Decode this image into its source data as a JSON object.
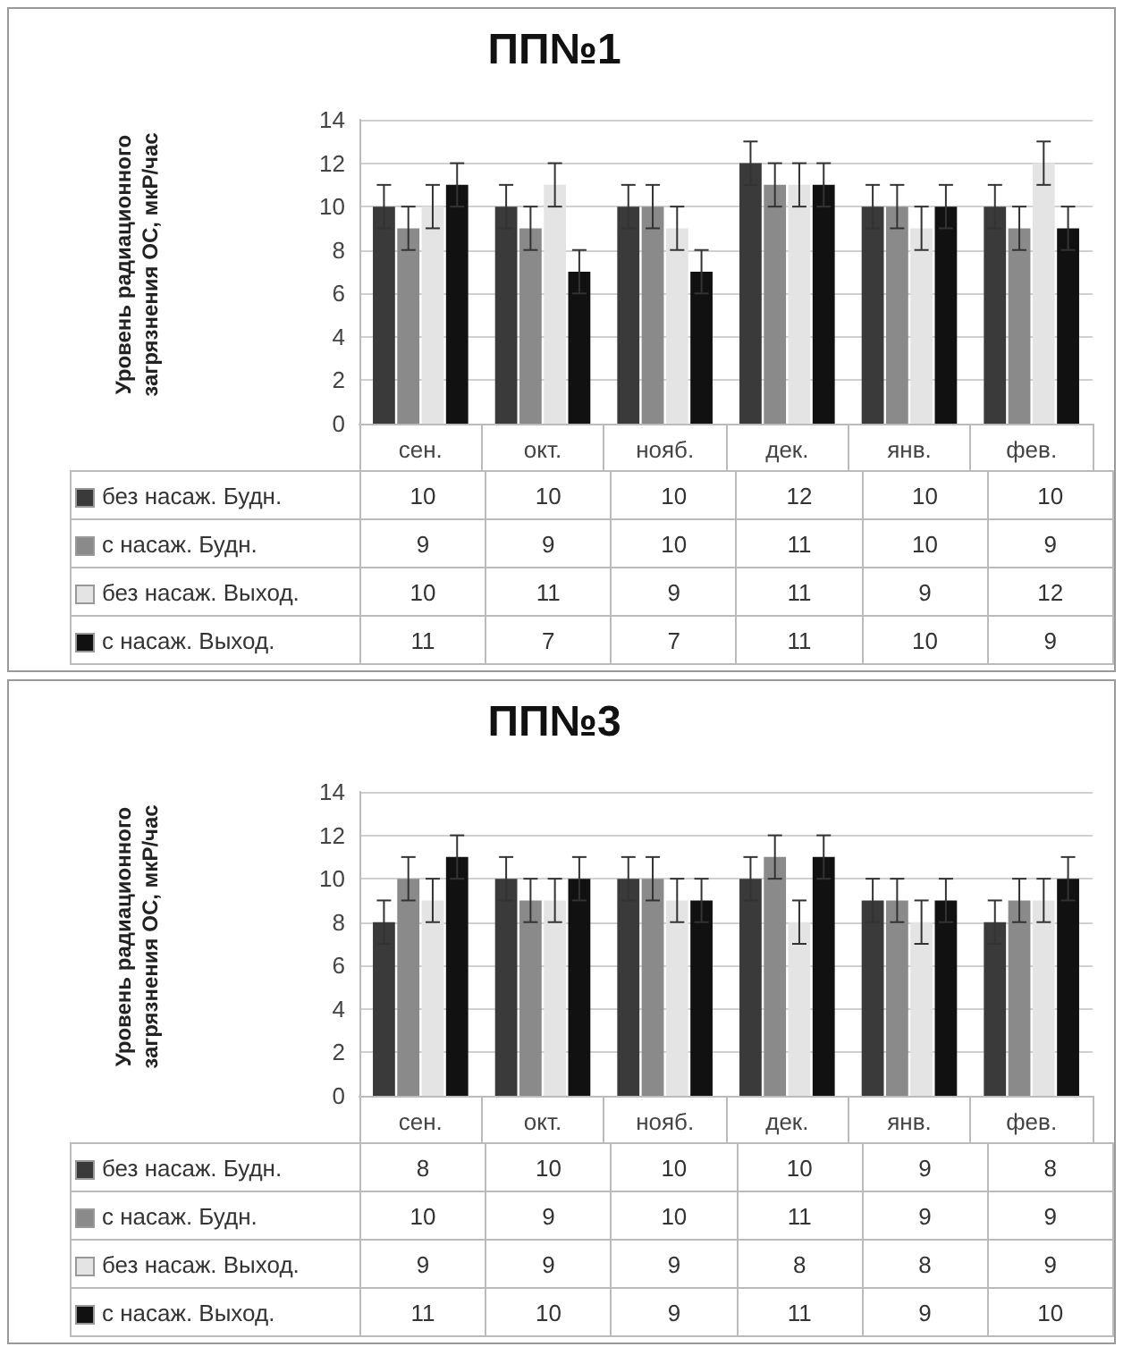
{
  "chart_data": [
    {
      "type": "bar",
      "title": "ПП№1",
      "ylabel": "Уровень радиационного загрязнения ОС, мкР/час",
      "categories": [
        "сен.",
        "окт.",
        "нояб.",
        "дек.",
        "янв.",
        "фев."
      ],
      "series": [
        {
          "name": "без насаж. Будн.",
          "color": "#3a3a3a",
          "values": [
            10,
            10,
            10,
            12,
            10,
            10
          ],
          "errors": [
            1,
            1,
            1,
            1,
            1,
            1
          ]
        },
        {
          "name": "с насаж. Будн.",
          "color": "#8a8a8a",
          "values": [
            9,
            9,
            10,
            11,
            10,
            9
          ],
          "errors": [
            1,
            1,
            1,
            1,
            1,
            1
          ]
        },
        {
          "name": "без насаж. Выход.",
          "color": "#e4e4e4",
          "values": [
            10,
            11,
            9,
            11,
            9,
            12
          ],
          "errors": [
            1,
            1,
            1,
            1,
            1,
            1
          ]
        },
        {
          "name": "с насаж. Выход.",
          "color": "#111111",
          "values": [
            11,
            7,
            7,
            11,
            10,
            9
          ],
          "errors": [
            1,
            1,
            1,
            1,
            1,
            1
          ]
        }
      ],
      "ylim": [
        0,
        14
      ],
      "yticks": [
        0,
        2,
        4,
        6,
        8,
        10,
        12,
        14
      ],
      "grid": "y",
      "legend": "bottom left",
      "data_labels": true
    },
    {
      "type": "bar",
      "title": "ПП№3",
      "ylabel": "Уровень радиационного загрязнения ОС, мкР/час",
      "categories": [
        "сен.",
        "окт.",
        "нояб.",
        "дек.",
        "янв.",
        "фев."
      ],
      "series": [
        {
          "name": "без насаж. Будн.",
          "color": "#3a3a3a",
          "values": [
            8,
            10,
            10,
            10,
            9,
            8
          ],
          "errors": [
            1,
            1,
            1,
            1,
            1,
            1
          ]
        },
        {
          "name": "с насаж. Будн.",
          "color": "#8a8a8a",
          "values": [
            10,
            9,
            10,
            11,
            9,
            9
          ],
          "errors": [
            1,
            1,
            1,
            1,
            1,
            1
          ]
        },
        {
          "name": "без насаж. Выход.",
          "color": "#e4e4e4",
          "values": [
            9,
            9,
            9,
            8,
            8,
            9
          ],
          "errors": [
            1,
            1,
            1,
            1,
            1,
            1
          ]
        },
        {
          "name": "с насаж. Выход.",
          "color": "#111111",
          "values": [
            11,
            10,
            9,
            11,
            9,
            10
          ],
          "errors": [
            1,
            1,
            1,
            1,
            1,
            1
          ]
        }
      ],
      "ylim": [
        0,
        14
      ],
      "yticks": [
        0,
        2,
        4,
        6,
        8,
        10,
        12,
        14
      ],
      "grid": "y",
      "legend": "bottom left",
      "data_labels": true
    }
  ]
}
